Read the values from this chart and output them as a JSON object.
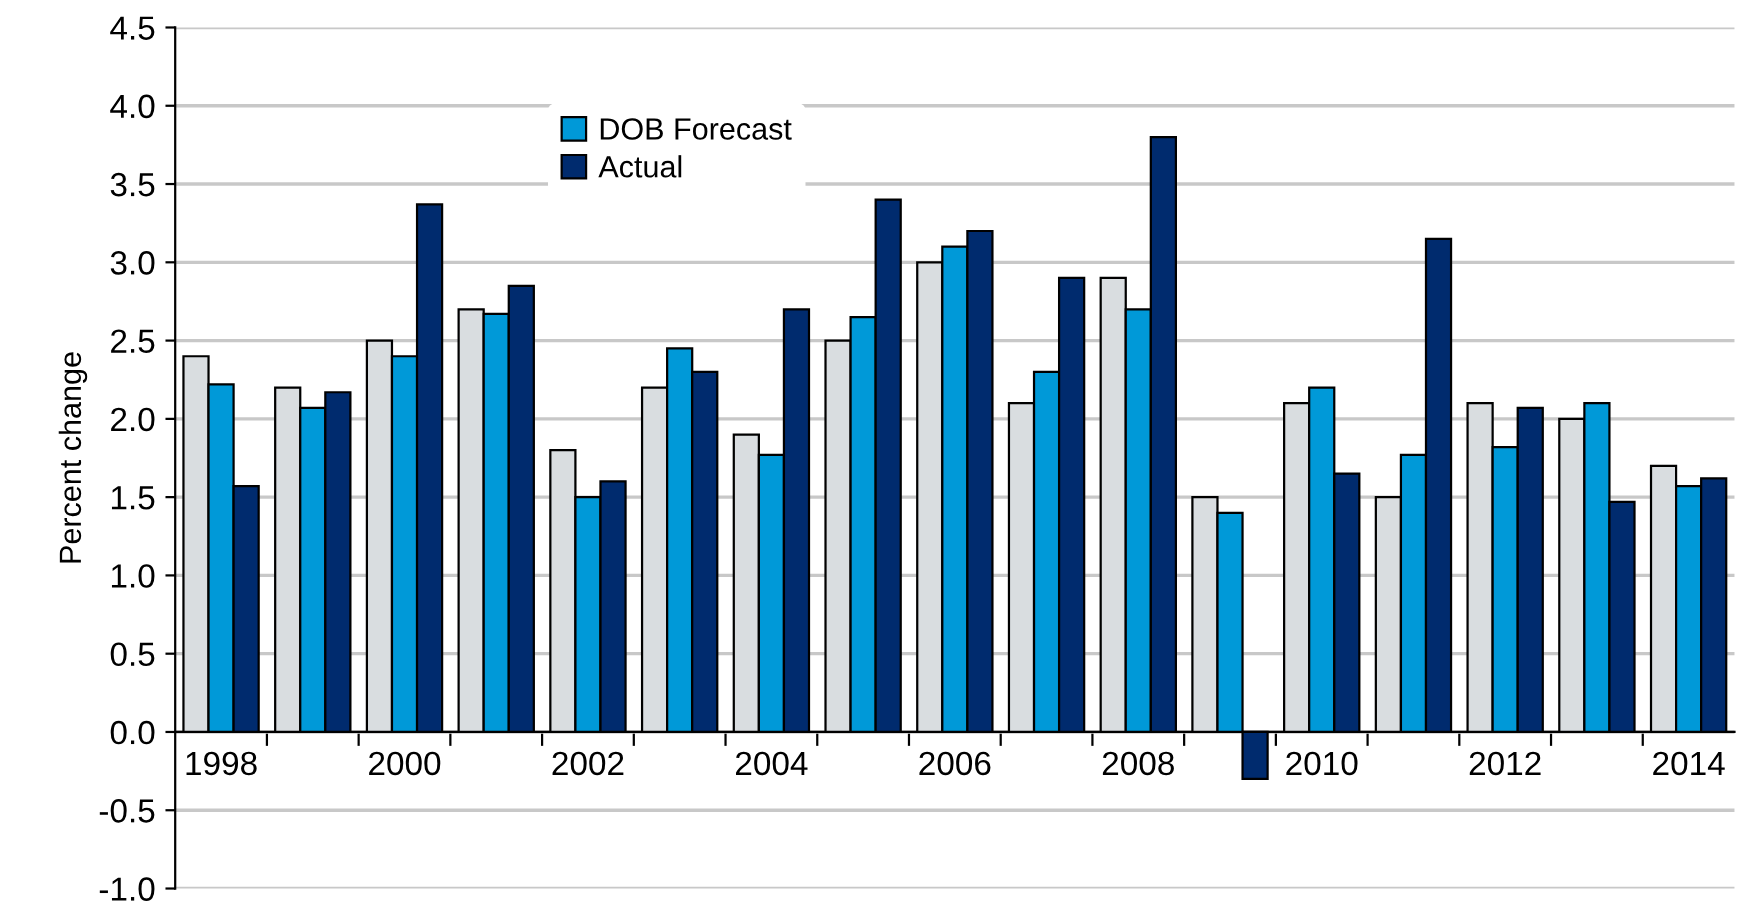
{
  "chart_data": {
    "type": "bar",
    "ylabel": "Percent change",
    "categories": [
      "1998",
      null,
      "2000",
      null,
      "2002",
      null,
      "2004",
      null,
      "2006",
      null,
      "2008",
      null,
      "2010",
      null,
      "2012",
      null,
      "2014"
    ],
    "series": [
      {
        "color": "#d9dde0",
        "values": [
          2.4,
          2.2,
          2.5,
          2.7,
          1.8,
          2.2,
          1.9,
          2.5,
          3.0,
          2.1,
          2.9,
          1.5,
          2.1,
          1.5,
          2.1,
          2.0,
          1.7
        ]
      },
      {
        "name": "DOB Forecast",
        "color": "#0099d8",
        "values": [
          2.22,
          2.07,
          2.4,
          2.67,
          1.5,
          2.45,
          1.77,
          2.65,
          3.1,
          2.3,
          2.7,
          1.4,
          2.2,
          1.77,
          1.82,
          2.1,
          1.57
        ]
      },
      {
        "name": "Actual",
        "color": "#002b6e",
        "values": [
          1.57,
          2.17,
          3.37,
          2.85,
          1.6,
          2.3,
          2.7,
          3.4,
          3.2,
          2.9,
          3.8,
          -0.3,
          1.65,
          3.15,
          2.07,
          1.47,
          1.62
        ]
      }
    ],
    "ylim": [
      -1.0,
      4.5
    ],
    "yticks": [
      {
        "value": -1.0,
        "label": "-1.0"
      },
      {
        "value": -0.5,
        "label": "-0.5"
      },
      {
        "value": 0,
        "label": "0.0"
      },
      {
        "value": 0.5,
        "label": "0.5"
      },
      {
        "value": 1.0,
        "label": "1.0"
      },
      {
        "value": 1.5,
        "label": "1.5"
      },
      {
        "value": 2.0,
        "label": "2.0"
      },
      {
        "value": 2.5,
        "label": "2.5"
      },
      {
        "value": 3.0,
        "label": "3.0"
      },
      {
        "value": 3.5,
        "label": "3.5"
      },
      {
        "value": 4.0,
        "label": "4.0"
      },
      {
        "value": 4.5,
        "label": "4.5"
      }
    ],
    "grid": "y",
    "legend": "top left"
  }
}
